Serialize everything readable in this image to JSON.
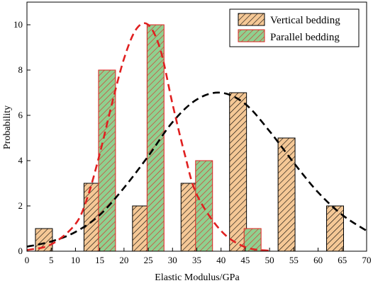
{
  "chart_data": {
    "type": "bar",
    "title": "",
    "xlabel": "Elastic Modulus/GPa",
    "ylabel": "Probability",
    "xlim": [
      0,
      70
    ],
    "ylim": [
      0,
      11
    ],
    "x_ticks": [
      0,
      5,
      10,
      15,
      20,
      25,
      30,
      35,
      40,
      45,
      50,
      55,
      60,
      65,
      70
    ],
    "y_ticks": [
      0,
      2,
      4,
      6,
      8,
      10
    ],
    "grid": false,
    "legend_position": "top-right",
    "bar_width": 3.5,
    "series": [
      {
        "name": "Vertical bedding",
        "kind": "bar",
        "fill": "#f5c896",
        "hatch": "#000000",
        "edge": "#000000",
        "x": [
          3.5,
          13.5,
          23.5,
          33.5,
          43.5,
          53.5,
          63.5
        ],
        "values": [
          1,
          3,
          2,
          3,
          7,
          5,
          2
        ]
      },
      {
        "name": "Parallel bedding",
        "kind": "bar",
        "fill": "#8fd08f",
        "hatch": "#e02020",
        "edge": "#e02020",
        "x": [
          16.5,
          26.5,
          36.5,
          46.5
        ],
        "values": [
          8,
          10,
          4,
          1
        ]
      }
    ],
    "fit_curves": [
      {
        "kind": "normal-fit",
        "for_series": "Vertical bedding",
        "color": "#000000",
        "style": "dashed",
        "x": [
          0,
          5,
          10,
          15,
          20,
          25,
          30,
          35,
          40,
          45,
          50,
          55,
          60,
          65,
          70
        ],
        "y": [
          0.2,
          0.43,
          0.85,
          1.6,
          2.8,
          4.2,
          5.7,
          6.7,
          7.0,
          6.5,
          5.3,
          3.9,
          2.6,
          1.6,
          0.9
        ]
      },
      {
        "kind": "normal-fit",
        "for_series": "Parallel bedding",
        "color": "#e02020",
        "style": "dashed",
        "x": [
          0,
          5,
          10,
          12.5,
          15,
          17.5,
          20,
          22.5,
          25,
          27.5,
          30,
          32.5,
          35,
          40,
          45,
          50
        ],
        "y": [
          0.05,
          0.3,
          1.2,
          2.4,
          4.3,
          6.5,
          8.5,
          9.8,
          10.0,
          8.9,
          6.5,
          4.3,
          2.5,
          0.9,
          0.18,
          0.02
        ]
      }
    ]
  }
}
